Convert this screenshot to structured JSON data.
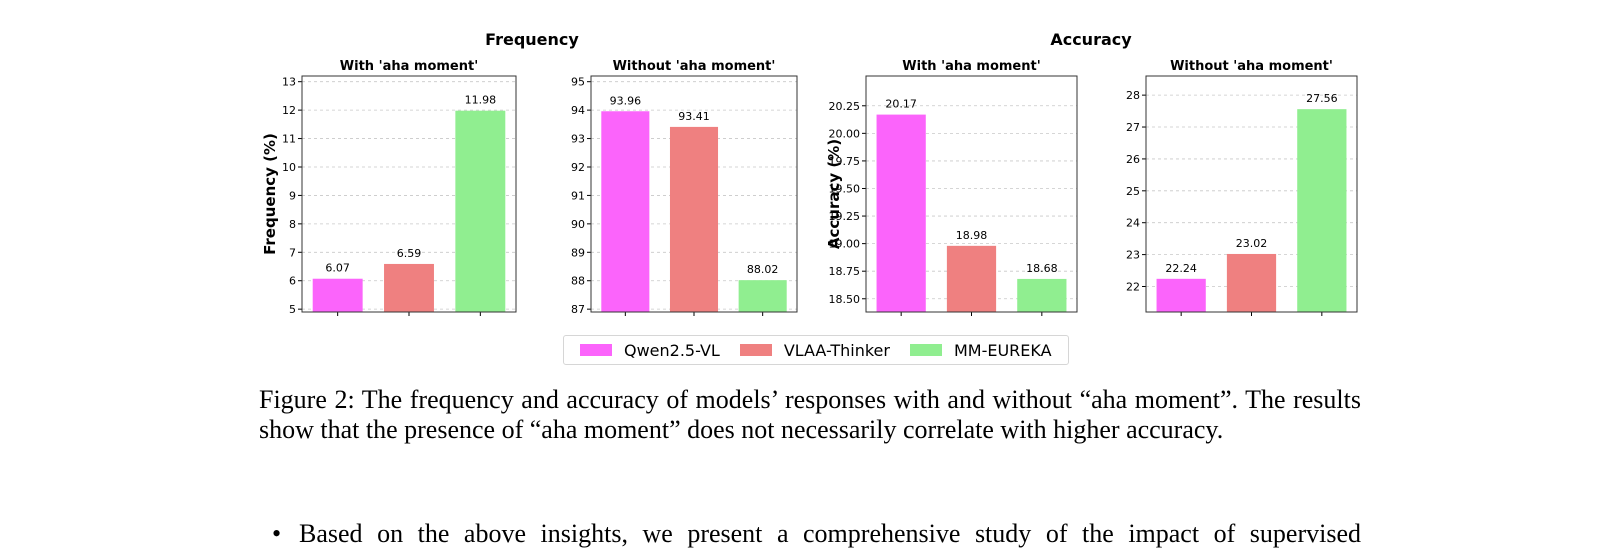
{
  "figure": {
    "group_titles": [
      "Frequency",
      "Accuracy"
    ],
    "legend": [
      {
        "label": "Qwen2.5-VL",
        "color": "#fb64fb"
      },
      {
        "label": "VLAA-Thinker",
        "color": "#ef8080"
      },
      {
        "label": "MM-EUREKA",
        "color": "#90ee90"
      }
    ]
  },
  "chart_data": [
    {
      "type": "bar",
      "group": "Frequency",
      "title": "With 'aha moment'",
      "ylabel": "Frequency (%)",
      "ylim": [
        4.9,
        13.2
      ],
      "yticks": [
        5,
        6,
        7,
        8,
        9,
        10,
        11,
        12,
        13
      ],
      "ytick_labels": [
        "5",
        "6",
        "7",
        "8",
        "9",
        "10",
        "11",
        "12",
        "13"
      ],
      "categories": [
        "Qwen2.5-VL",
        "VLAA-Thinker",
        "MM-EUREKA"
      ],
      "values": [
        6.07,
        6.59,
        11.98
      ],
      "value_labels": [
        "6.07",
        "6.59",
        "11.98"
      ],
      "grid": true
    },
    {
      "type": "bar",
      "group": "Frequency",
      "title": "Without 'aha moment'",
      "ylabel": "",
      "ylim": [
        86.9,
        95.2
      ],
      "yticks": [
        87,
        88,
        89,
        90,
        91,
        92,
        93,
        94,
        95
      ],
      "ytick_labels": [
        "87",
        "88",
        "89",
        "90",
        "91",
        "92",
        "93",
        "94",
        "95"
      ],
      "categories": [
        "Qwen2.5-VL",
        "VLAA-Thinker",
        "MM-EUREKA"
      ],
      "values": [
        93.96,
        93.41,
        88.02
      ],
      "value_labels": [
        "93.96",
        "93.41",
        "88.02"
      ],
      "grid": true
    },
    {
      "type": "bar",
      "group": "Accuracy",
      "title": "With 'aha moment'",
      "ylabel": "Accuracy (%)",
      "ylim": [
        18.38,
        20.52
      ],
      "yticks": [
        18.5,
        18.75,
        19.0,
        19.25,
        19.5,
        19.75,
        20.0,
        20.25
      ],
      "ytick_labels": [
        "18.50",
        "18.75",
        "19.00",
        "19.25",
        "19.50",
        "19.75",
        "20.00",
        "20.25"
      ],
      "categories": [
        "Qwen2.5-VL",
        "VLAA-Thinker",
        "MM-EUREKA"
      ],
      "values": [
        20.17,
        18.98,
        18.68
      ],
      "value_labels": [
        "20.17",
        "18.98",
        "18.68"
      ],
      "grid": true
    },
    {
      "type": "bar",
      "group": "Accuracy",
      "title": "Without 'aha moment'",
      "ylabel": "",
      "ylim": [
        21.2,
        28.6
      ],
      "yticks": [
        22,
        23,
        24,
        25,
        26,
        27,
        28
      ],
      "ytick_labels": [
        "22",
        "23",
        "24",
        "25",
        "26",
        "27",
        "28"
      ],
      "categories": [
        "Qwen2.5-VL",
        "VLAA-Thinker",
        "MM-EUREKA"
      ],
      "values": [
        22.24,
        23.02,
        27.56
      ],
      "value_labels": [
        "22.24",
        "23.02",
        "27.56"
      ],
      "grid": true
    }
  ],
  "caption": "Figure 2: The frequency and accuracy of models’ responses with and without “aha moment”. The results show that the presence of “aha moment” does not necessarily correlate with higher accuracy.",
  "bullet": {
    "mark": "•",
    "text": "Based on the above insights, we present a comprehensive study of the impact of supervised"
  }
}
